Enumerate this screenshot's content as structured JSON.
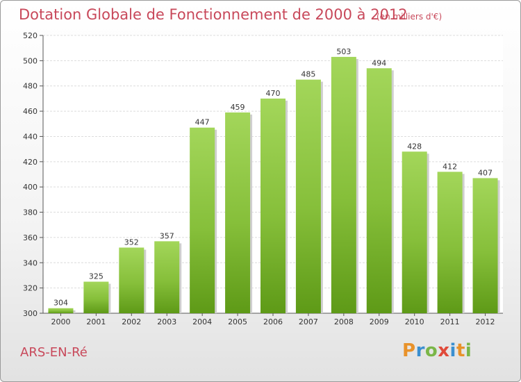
{
  "header": {
    "title": "Dotation Globale de Fonctionnement de 2000 à 2012",
    "subtitle": "(en milliers d'€)"
  },
  "footer": {
    "commune": "ARS-EN-Ré",
    "logo": "Proxiti"
  },
  "colors": {
    "bar_light": "#9ed152",
    "bar_dark": "#5e9a17",
    "title": "#c8485a"
  },
  "chart_data": {
    "type": "bar",
    "title": "Dotation Globale de Fonctionnement de 2000 à 2012",
    "subtitle": "(en milliers d'€)",
    "categories": [
      "2000",
      "2001",
      "2002",
      "2003",
      "2004",
      "2005",
      "2006",
      "2007",
      "2008",
      "2009",
      "2010",
      "2011",
      "2012"
    ],
    "values": [
      304,
      325,
      352,
      357,
      447,
      459,
      470,
      485,
      503,
      494,
      428,
      412,
      407
    ],
    "ylim": [
      300,
      520
    ],
    "yticks": [
      300,
      320,
      340,
      360,
      380,
      400,
      420,
      440,
      460,
      480,
      500,
      520
    ],
    "grid": true,
    "xlabel": "",
    "ylabel": ""
  }
}
